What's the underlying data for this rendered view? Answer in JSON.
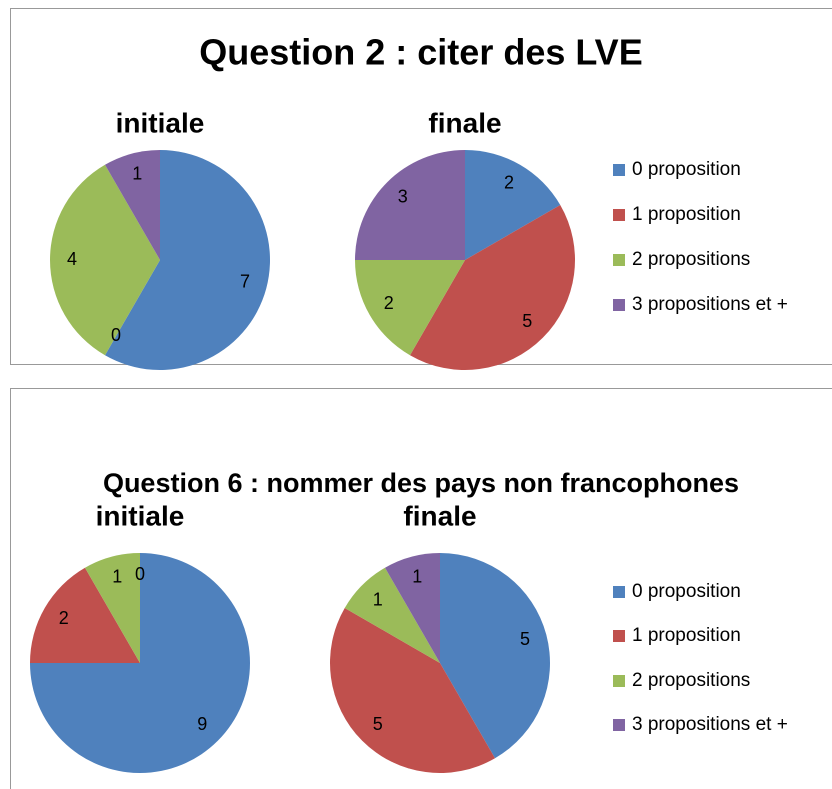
{
  "chart_data": [
    {
      "type": "pie",
      "title": "Question 2 : citer des LVE",
      "categories": [
        "0 proposition",
        "1 proposition",
        "2 propositions",
        "3 propositions et +"
      ],
      "colors": [
        "#4f81bd",
        "#c0504d",
        "#9bbb59",
        "#8064a2"
      ],
      "pies": [
        {
          "title": "initiale",
          "values": [
            7,
            0,
            4,
            1
          ]
        },
        {
          "title": "finale",
          "values": [
            2,
            5,
            2,
            3
          ]
        }
      ]
    },
    {
      "type": "pie",
      "title": "Question 6 : nommer des pays non francophones",
      "categories": [
        "0 proposition",
        "1 proposition",
        "2 propositions",
        "3 propositions et +"
      ],
      "colors": [
        "#4f81bd",
        "#c0504d",
        "#9bbb59",
        "#8064a2"
      ],
      "pies": [
        {
          "title": "initiale",
          "values": [
            9,
            2,
            1,
            0
          ]
        },
        {
          "title": "finale",
          "values": [
            5,
            5,
            1,
            1
          ]
        }
      ]
    }
  ]
}
